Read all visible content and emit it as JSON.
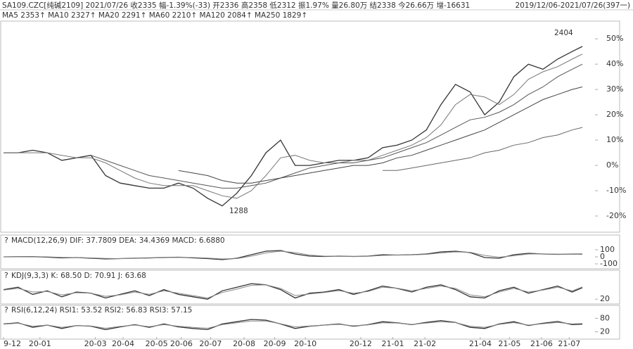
{
  "chart_data": [
    {
      "type": "line",
      "title": "SA109.CZC[纯碱2109]  2021/07/26  收2335  幅-1.39%(-33)  开2336  高2358  低2312  振1.97%  量26.80万  结2338  今26.66万  增-16631",
      "subtitle": "2019/12/06-2021/07/26(397一)",
      "ma_legend": "MA5 2353↑  MA10 2327↑  MA20 2291↑  MA60 2210↑  MA120 2084↑  MA250 1829↑",
      "annotations": [
        "2404",
        "1288"
      ],
      "x": [
        0,
        10,
        20,
        30,
        40,
        50,
        60,
        70,
        80,
        90,
        100,
        110,
        120,
        130,
        140,
        150,
        160,
        170,
        180,
        190,
        200,
        210,
        220,
        230,
        240,
        250,
        260,
        270,
        280,
        290,
        300,
        310,
        320,
        330,
        340,
        350,
        360,
        370,
        380,
        390,
        397
      ],
      "xlim": [
        0,
        397
      ],
      "ylim": [
        -25,
        57
      ],
      "yticks": [
        {
          "value": 50,
          "label": "50%"
        },
        {
          "value": 40,
          "label": "40%"
        },
        {
          "value": 30,
          "label": "30%"
        },
        {
          "value": 20,
          "label": "20%"
        },
        {
          "value": 10,
          "label": "10%"
        },
        {
          "value": 0,
          "label": "0%"
        },
        {
          "value": -10,
          "label": "-10%"
        },
        {
          "value": -20,
          "label": "-20%"
        }
      ],
      "grid": false,
      "series": [
        {
          "color": "#333333",
          "values": [
            5,
            5,
            6,
            5,
            2,
            3,
            4,
            -4,
            -7,
            -8,
            -9,
            -9,
            -7,
            -9,
            -13,
            -16,
            -11,
            -4,
            5,
            10,
            0,
            0,
            1,
            2,
            2,
            3,
            7,
            8,
            10,
            14,
            24,
            32,
            29,
            20,
            25,
            35,
            40,
            38,
            42,
            45,
            47
          ]
        },
        {
          "color": "#777777",
          "values": [
            5,
            5,
            5,
            5,
            4,
            3,
            3,
            1,
            -2,
            -5,
            -7,
            -8,
            -8,
            -8,
            -10,
            -12,
            -13,
            -10,
            -4,
            3,
            4,
            2,
            1,
            1,
            2,
            2,
            4,
            6,
            8,
            11,
            16,
            24,
            28,
            27,
            24,
            28,
            34,
            37,
            39,
            42,
            44
          ]
        },
        {
          "color": "#555555",
          "values": [
            null,
            null,
            null,
            null,
            null,
            null,
            4,
            2,
            0,
            -2,
            -4,
            -5,
            -6,
            -7,
            -8,
            -9,
            -9,
            -8,
            -7,
            -5,
            -3,
            -1,
            0,
            1,
            1,
            2,
            3,
            5,
            7,
            9,
            12,
            15,
            18,
            19,
            21,
            24,
            28,
            31,
            35,
            38,
            40
          ]
        },
        {
          "color": "#444444",
          "values": [
            null,
            null,
            null,
            null,
            null,
            null,
            null,
            null,
            null,
            null,
            null,
            null,
            -2,
            -3,
            -4,
            -6,
            -7,
            -7,
            -6,
            -5,
            -4,
            -3,
            -2,
            -1,
            0,
            0,
            1,
            3,
            4,
            6,
            8,
            10,
            12,
            14,
            17,
            20,
            23,
            26,
            28,
            30,
            31
          ]
        },
        {
          "color": "#666666",
          "values": [
            null,
            null,
            null,
            null,
            null,
            null,
            null,
            null,
            null,
            null,
            null,
            null,
            null,
            null,
            null,
            null,
            null,
            null,
            null,
            null,
            null,
            null,
            null,
            null,
            null,
            null,
            -2,
            -2,
            -1,
            0,
            1,
            2,
            3,
            5,
            6,
            8,
            9,
            11,
            12,
            14,
            15
          ]
        }
      ]
    },
    {
      "type": "line",
      "title": "MACD(12,26,9)  DIF: 37.7809  DEA: 34.4369  MACD: 6.6880",
      "x": [
        0,
        10,
        20,
        30,
        40,
        50,
        60,
        70,
        80,
        90,
        100,
        110,
        120,
        130,
        140,
        150,
        160,
        170,
        180,
        190,
        200,
        210,
        220,
        230,
        240,
        250,
        260,
        270,
        280,
        290,
        300,
        310,
        320,
        330,
        340,
        350,
        360,
        370,
        380,
        390,
        397
      ],
      "xlim": [
        0,
        397
      ],
      "ylim": [
        -200,
        200
      ],
      "yticks": [
        100,
        0,
        -100
      ],
      "series": [
        {
          "color": "#333333",
          "values": [
            0,
            2,
            3,
            -5,
            -15,
            -10,
            -20,
            -30,
            -25,
            -20,
            -15,
            -10,
            -5,
            -15,
            -25,
            -40,
            -20,
            30,
            80,
            90,
            40,
            10,
            5,
            10,
            5,
            10,
            30,
            25,
            30,
            40,
            70,
            80,
            60,
            -10,
            -20,
            30,
            50,
            40,
            35,
            38,
            38
          ]
        },
        {
          "color": "#888888",
          "values": [
            0,
            1,
            2,
            0,
            -8,
            -10,
            -15,
            -22,
            -25,
            -22,
            -18,
            -13,
            -8,
            -10,
            -18,
            -30,
            -25,
            10,
            55,
            80,
            60,
            25,
            10,
            8,
            6,
            8,
            20,
            25,
            28,
            35,
            55,
            70,
            65,
            20,
            -5,
            15,
            40,
            42,
            38,
            36,
            34
          ]
        }
      ]
    },
    {
      "type": "line",
      "title": "KDJ(9,3,3)  K: 68.50  D: 70.91  J: 63.68",
      "x": [
        0,
        10,
        20,
        30,
        40,
        50,
        60,
        70,
        80,
        90,
        100,
        110,
        120,
        130,
        140,
        150,
        160,
        170,
        180,
        190,
        200,
        210,
        220,
        230,
        240,
        250,
        260,
        270,
        280,
        290,
        300,
        310,
        320,
        330,
        340,
        350,
        360,
        370,
        380,
        390,
        397
      ],
      "xlim": [
        0,
        397
      ],
      "ylim": [
        0,
        100
      ],
      "yticks": [
        20
      ],
      "series": [
        {
          "color": "#333333",
          "values": [
            60,
            70,
            40,
            55,
            30,
            50,
            45,
            25,
            40,
            55,
            35,
            60,
            40,
            30,
            20,
            55,
            70,
            85,
            80,
            60,
            25,
            45,
            50,
            60,
            40,
            55,
            75,
            65,
            50,
            70,
            80,
            60,
            30,
            25,
            55,
            70,
            45,
            60,
            75,
            50,
            68
          ]
        },
        {
          "color": "#888888",
          "values": [
            58,
            65,
            50,
            52,
            38,
            47,
            45,
            32,
            38,
            50,
            40,
            55,
            45,
            35,
            25,
            48,
            62,
            78,
            80,
            65,
            35,
            42,
            48,
            56,
            45,
            52,
            70,
            66,
            55,
            65,
            75,
            65,
            38,
            30,
            50,
            65,
            50,
            58,
            70,
            55,
            71
          ]
        }
      ]
    },
    {
      "type": "line",
      "title": "RSI(6,12,24)  RSI1: 53.52  RSI2: 56.83  RSI3: 57.15",
      "x": [
        0,
        10,
        20,
        30,
        40,
        50,
        60,
        70,
        80,
        90,
        100,
        110,
        120,
        130,
        140,
        150,
        160,
        170,
        180,
        190,
        200,
        210,
        220,
        230,
        240,
        250,
        260,
        270,
        280,
        290,
        300,
        310,
        320,
        330,
        340,
        350,
        360,
        370,
        380,
        390,
        397
      ],
      "xlim": [
        0,
        397
      ],
      "ylim": [
        0,
        100
      ],
      "yticks": [
        80,
        20
      ],
      "xticks": [
        {
          "value": 0,
          "label": "9-12"
        },
        {
          "value": 25,
          "label": "20-01"
        },
        {
          "value": 63,
          "label": "20-03"
        },
        {
          "value": 82,
          "label": "20-04"
        },
        {
          "value": 105,
          "label": "20-05"
        },
        {
          "value": 122,
          "label": "20-06"
        },
        {
          "value": 142,
          "label": "20-07"
        },
        {
          "value": 165,
          "label": "20-08"
        },
        {
          "value": 186,
          "label": "20-09"
        },
        {
          "value": 207,
          "label": "20-10"
        },
        {
          "value": 245,
          "label": "20-12"
        },
        {
          "value": 267,
          "label": "21-01"
        },
        {
          "value": 289,
          "label": "21-02"
        },
        {
          "value": 327,
          "label": "21-04"
        },
        {
          "value": 347,
          "label": "21-05"
        },
        {
          "value": 369,
          "label": "21-06"
        },
        {
          "value": 388,
          "label": "21-07"
        }
      ],
      "series": [
        {
          "color": "#333333",
          "values": [
            55,
            60,
            40,
            50,
            35,
            48,
            45,
            30,
            42,
            52,
            40,
            55,
            42,
            35,
            30,
            55,
            65,
            75,
            72,
            55,
            35,
            45,
            50,
            55,
            45,
            52,
            65,
            60,
            52,
            62,
            70,
            62,
            40,
            35,
            55,
            65,
            48,
            58,
            66,
            52,
            54
          ]
        },
        {
          "color": "#888888",
          "values": [
            54,
            58,
            45,
            50,
            40,
            48,
            46,
            36,
            44,
            50,
            43,
            52,
            45,
            40,
            36,
            52,
            60,
            68,
            68,
            56,
            42,
            46,
            50,
            53,
            47,
            51,
            60,
            59,
            53,
            59,
            65,
            61,
            45,
            40,
            53,
            61,
            50,
            56,
            62,
            55,
            57
          ]
        }
      ]
    }
  ]
}
